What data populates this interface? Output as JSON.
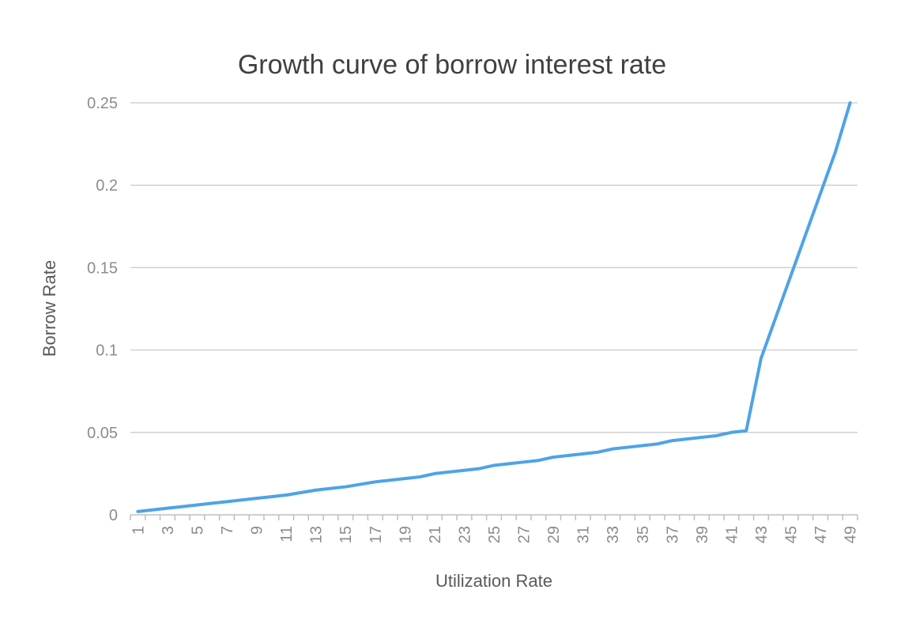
{
  "chart_data": {
    "type": "line",
    "title": "Growth curve of borrow interest rate",
    "xlabel": "Utilization Rate",
    "ylabel": "Borrow Rate",
    "x": [
      1,
      2,
      3,
      4,
      5,
      6,
      7,
      8,
      9,
      10,
      11,
      12,
      13,
      14,
      15,
      16,
      17,
      18,
      19,
      20,
      21,
      22,
      23,
      24,
      25,
      26,
      27,
      28,
      29,
      30,
      31,
      32,
      33,
      34,
      35,
      36,
      37,
      38,
      39,
      40,
      41,
      42,
      43,
      44,
      45,
      46,
      47,
      48,
      49
    ],
    "x_tick_labels": [
      "1",
      "3",
      "5",
      "7",
      "9",
      "11",
      "13",
      "15",
      "17",
      "19",
      "21",
      "23",
      "25",
      "27",
      "29",
      "31",
      "33",
      "35",
      "37",
      "39",
      "41",
      "43",
      "45",
      "47",
      "49"
    ],
    "y_tick_labels": [
      "0",
      "0.05",
      "0.1",
      "0.15",
      "0.2",
      "0.25"
    ],
    "ylim": [
      0,
      0.25
    ],
    "grid": true,
    "legend": "none",
    "series": [
      {
        "values": [
          0.002,
          0.003,
          0.004,
          0.005,
          0.006,
          0.007,
          0.008,
          0.009,
          0.01,
          0.011,
          0.012,
          0.0135,
          0.015,
          0.016,
          0.017,
          0.0185,
          0.02,
          0.021,
          0.022,
          0.023,
          0.025,
          0.026,
          0.027,
          0.028,
          0.03,
          0.031,
          0.032,
          0.033,
          0.035,
          0.036,
          0.037,
          0.038,
          0.04,
          0.041,
          0.042,
          0.043,
          0.045,
          0.046,
          0.047,
          0.048,
          0.05,
          0.051,
          0.095,
          0.12,
          0.145,
          0.17,
          0.195,
          0.22,
          0.25
        ],
        "color": "#4ea3e6"
      }
    ],
    "colors": {
      "line": "#4ea3e6",
      "grid": "#d0d0d0",
      "axis": "#bfbfbf"
    }
  }
}
